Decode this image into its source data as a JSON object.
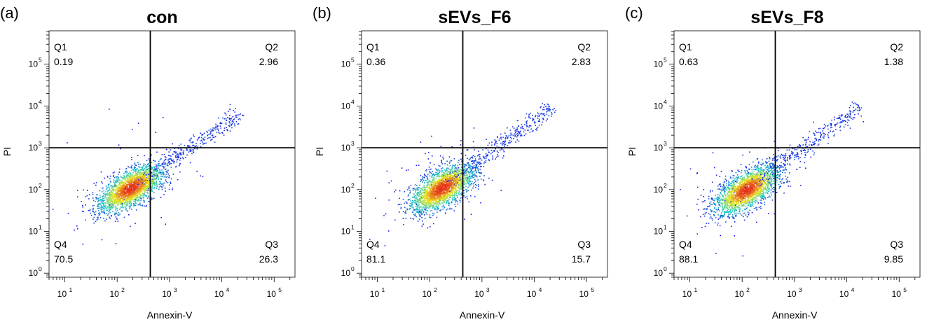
{
  "chart_data": [
    {
      "type": "scatter",
      "panel_letter": "(a)",
      "title": "con",
      "xlabel": "Annexin-V",
      "ylabel": "PI",
      "x_scale": "log",
      "y_scale": "log",
      "xlim": [
        5,
        250000
      ],
      "ylim": [
        0.8,
        630000
      ],
      "x_ticks": [
        {
          "base": "10",
          "exp": "1",
          "v": 10
        },
        {
          "base": "10",
          "exp": "2",
          "v": 100
        },
        {
          "base": "10",
          "exp": "3",
          "v": 1000
        },
        {
          "base": "10",
          "exp": "4",
          "v": 10000
        },
        {
          "base": "10",
          "exp": "5",
          "v": 100000
        }
      ],
      "y_ticks": [
        {
          "base": "10",
          "exp": "0",
          "v": 1
        },
        {
          "base": "10",
          "exp": "1",
          "v": 10
        },
        {
          "base": "10",
          "exp": "2",
          "v": 100
        },
        {
          "base": "10",
          "exp": "3",
          "v": 1000
        },
        {
          "base": "10",
          "exp": "4",
          "v": 10000
        },
        {
          "base": "10",
          "exp": "5",
          "v": 100000
        }
      ],
      "gate": {
        "x": 430,
        "y": 1000
      },
      "quadrants": [
        {
          "name": "Q1",
          "value": "0.19"
        },
        {
          "name": "Q2",
          "value": "2.96"
        },
        {
          "name": "Q3",
          "value": "26.3"
        },
        {
          "name": "Q4",
          "value": "70.5"
        }
      ],
      "population": {
        "center_x": 180,
        "center_y": 110,
        "spread_major": 0.38,
        "spread_minor": 0.18,
        "tail_end_x": 15000,
        "tail_end_y": 5000
      }
    },
    {
      "type": "scatter",
      "panel_letter": "(b)",
      "title": "sEVs_F6",
      "xlabel": "Annexin-V",
      "ylabel": "PI",
      "x_scale": "log",
      "y_scale": "log",
      "xlim": [
        5,
        250000
      ],
      "ylim": [
        0.8,
        630000
      ],
      "x_ticks": [
        {
          "base": "10",
          "exp": "1",
          "v": 10
        },
        {
          "base": "10",
          "exp": "2",
          "v": 100
        },
        {
          "base": "10",
          "exp": "3",
          "v": 1000
        },
        {
          "base": "10",
          "exp": "4",
          "v": 10000
        },
        {
          "base": "10",
          "exp": "5",
          "v": 100000
        }
      ],
      "y_ticks": [
        {
          "base": "10",
          "exp": "0",
          "v": 1
        },
        {
          "base": "10",
          "exp": "1",
          "v": 10
        },
        {
          "base": "10",
          "exp": "2",
          "v": 100
        },
        {
          "base": "10",
          "exp": "3",
          "v": 1000
        },
        {
          "base": "10",
          "exp": "4",
          "v": 10000
        },
        {
          "base": "10",
          "exp": "5",
          "v": 100000
        }
      ],
      "gate": {
        "x": 430,
        "y": 1000
      },
      "quadrants": [
        {
          "name": "Q1",
          "value": "0.36"
        },
        {
          "name": "Q2",
          "value": "2.83"
        },
        {
          "name": "Q3",
          "value": "15.7"
        },
        {
          "name": "Q4",
          "value": "81.1"
        }
      ],
      "population": {
        "center_x": 170,
        "center_y": 110,
        "spread_major": 0.38,
        "spread_minor": 0.18,
        "tail_end_x": 15000,
        "tail_end_y": 7000
      }
    },
    {
      "type": "scatter",
      "panel_letter": "(c)",
      "title": "sEVs_F8",
      "xlabel": "Annexin-V",
      "ylabel": "PI",
      "x_scale": "log",
      "y_scale": "log",
      "xlim": [
        5,
        250000
      ],
      "ylim": [
        0.8,
        630000
      ],
      "x_ticks": [
        {
          "base": "10",
          "exp": "1",
          "v": 10
        },
        {
          "base": "10",
          "exp": "2",
          "v": 100
        },
        {
          "base": "10",
          "exp": "3",
          "v": 1000
        },
        {
          "base": "10",
          "exp": "4",
          "v": 10000
        },
        {
          "base": "10",
          "exp": "5",
          "v": 100000
        }
      ],
      "y_ticks": [
        {
          "base": "10",
          "exp": "0",
          "v": 1
        },
        {
          "base": "10",
          "exp": "1",
          "v": 10
        },
        {
          "base": "10",
          "exp": "2",
          "v": 100
        },
        {
          "base": "10",
          "exp": "3",
          "v": 1000
        },
        {
          "base": "10",
          "exp": "4",
          "v": 10000
        },
        {
          "base": "10",
          "exp": "5",
          "v": 100000
        }
      ],
      "gate": {
        "x": 430,
        "y": 1000
      },
      "quadrants": [
        {
          "name": "Q1",
          "value": "0.63"
        },
        {
          "name": "Q2",
          "value": "1.38"
        },
        {
          "name": "Q3",
          "value": "9.85"
        },
        {
          "name": "Q4",
          "value": "88.1"
        }
      ],
      "population": {
        "center_x": 120,
        "center_y": 100,
        "spread_major": 0.38,
        "spread_minor": 0.18,
        "tail_end_x": 12000,
        "tail_end_y": 7000
      }
    }
  ],
  "colors": {
    "axis": "#000000",
    "gate_line": "#000000",
    "density_low": "#1a1ae6",
    "density_mid": "#19c8c8",
    "density_high": "#e8e81a",
    "density_peak": "#e62a1a"
  }
}
